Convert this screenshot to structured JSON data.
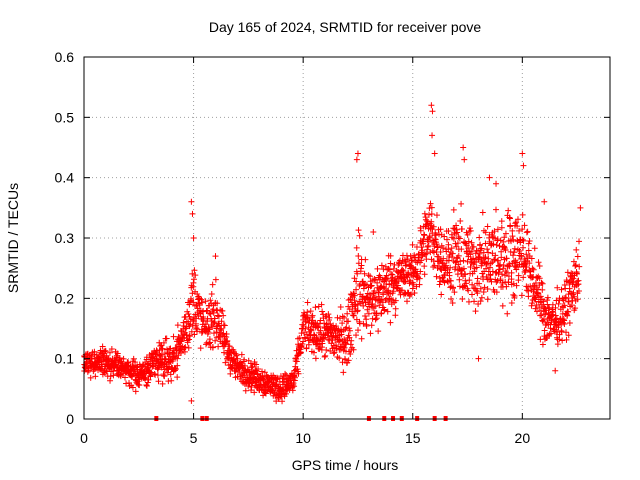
{
  "chart_data": {
    "type": "scatter",
    "title": "Day 165 of 2024, SRMTID for receiver pove",
    "xlabel": "GPS time / hours",
    "ylabel": "SRMTID / TECUs",
    "xlim": [
      0,
      24
    ],
    "ylim": [
      0,
      0.6
    ],
    "xticks": [
      0,
      5,
      10,
      15,
      20
    ],
    "yticks": [
      0,
      0.1,
      0.2,
      0.3,
      0.4,
      0.5,
      0.6
    ],
    "ytick_labels": [
      "0",
      "0.1",
      "0.2",
      "0.3",
      "0.4",
      "0.5",
      "0.6"
    ],
    "grid": true,
    "marker": "+",
    "color": "#ff0000",
    "envelope": [
      {
        "x": 0.0,
        "lo": 0.06,
        "hi": 0.12
      },
      {
        "x": 1.0,
        "lo": 0.06,
        "hi": 0.13
      },
      {
        "x": 2.0,
        "lo": 0.05,
        "hi": 0.11
      },
      {
        "x": 2.5,
        "lo": 0.04,
        "hi": 0.1
      },
      {
        "x": 3.0,
        "lo": 0.05,
        "hi": 0.12
      },
      {
        "x": 3.5,
        "lo": 0.05,
        "hi": 0.16
      },
      {
        "x": 4.0,
        "lo": 0.05,
        "hi": 0.14
      },
      {
        "x": 4.6,
        "lo": 0.08,
        "hi": 0.2
      },
      {
        "x": 5.0,
        "lo": 0.1,
        "hi": 0.3
      },
      {
        "x": 5.5,
        "lo": 0.1,
        "hi": 0.2
      },
      {
        "x": 6.0,
        "lo": 0.1,
        "hi": 0.25
      },
      {
        "x": 6.5,
        "lo": 0.07,
        "hi": 0.16
      },
      {
        "x": 7.0,
        "lo": 0.05,
        "hi": 0.12
      },
      {
        "x": 8.0,
        "lo": 0.03,
        "hi": 0.1
      },
      {
        "x": 9.0,
        "lo": 0.02,
        "hi": 0.08
      },
      {
        "x": 9.6,
        "lo": 0.03,
        "hi": 0.1
      },
      {
        "x": 10.0,
        "lo": 0.1,
        "hi": 0.2
      },
      {
        "x": 11.0,
        "lo": 0.08,
        "hi": 0.2
      },
      {
        "x": 12.0,
        "lo": 0.06,
        "hi": 0.2
      },
      {
        "x": 12.5,
        "lo": 0.1,
        "hi": 0.35
      },
      {
        "x": 13.0,
        "lo": 0.1,
        "hi": 0.28
      },
      {
        "x": 14.0,
        "lo": 0.15,
        "hi": 0.3
      },
      {
        "x": 15.0,
        "lo": 0.18,
        "hi": 0.3
      },
      {
        "x": 15.8,
        "lo": 0.22,
        "hi": 0.4
      },
      {
        "x": 16.5,
        "lo": 0.18,
        "hi": 0.33
      },
      {
        "x": 17.0,
        "lo": 0.15,
        "hi": 0.38
      },
      {
        "x": 18.0,
        "lo": 0.15,
        "hi": 0.35
      },
      {
        "x": 19.0,
        "lo": 0.15,
        "hi": 0.38
      },
      {
        "x": 20.0,
        "lo": 0.18,
        "hi": 0.38
      },
      {
        "x": 20.5,
        "lo": 0.15,
        "hi": 0.3
      },
      {
        "x": 21.0,
        "lo": 0.1,
        "hi": 0.25
      },
      {
        "x": 21.5,
        "lo": 0.1,
        "hi": 0.22
      },
      {
        "x": 22.0,
        "lo": 0.12,
        "hi": 0.25
      },
      {
        "x": 22.6,
        "lo": 0.15,
        "hi": 0.34
      }
    ],
    "outliers": [
      {
        "x": 4.9,
        "y": 0.36
      },
      {
        "x": 4.95,
        "y": 0.34
      },
      {
        "x": 5.0,
        "y": 0.3
      },
      {
        "x": 6.0,
        "y": 0.27
      },
      {
        "x": 12.45,
        "y": 0.43
      },
      {
        "x": 12.5,
        "y": 0.44
      },
      {
        "x": 13.2,
        "y": 0.31
      },
      {
        "x": 15.85,
        "y": 0.52
      },
      {
        "x": 15.9,
        "y": 0.51
      },
      {
        "x": 15.88,
        "y": 0.47
      },
      {
        "x": 16.0,
        "y": 0.44
      },
      {
        "x": 17.3,
        "y": 0.45
      },
      {
        "x": 17.35,
        "y": 0.43
      },
      {
        "x": 18.5,
        "y": 0.4
      },
      {
        "x": 18.8,
        "y": 0.39
      },
      {
        "x": 20.0,
        "y": 0.44
      },
      {
        "x": 20.05,
        "y": 0.42
      },
      {
        "x": 21.0,
        "y": 0.36
      },
      {
        "x": 22.65,
        "y": 0.35
      },
      {
        "x": 4.9,
        "y": 0.03
      },
      {
        "x": 18.0,
        "y": 0.1
      },
      {
        "x": 21.5,
        "y": 0.08
      }
    ],
    "baseline_markers_x": [
      3.3,
      5.4,
      5.6,
      13.0,
      13.7,
      14.1,
      14.5,
      15.2,
      16.0,
      16.5
    ]
  }
}
